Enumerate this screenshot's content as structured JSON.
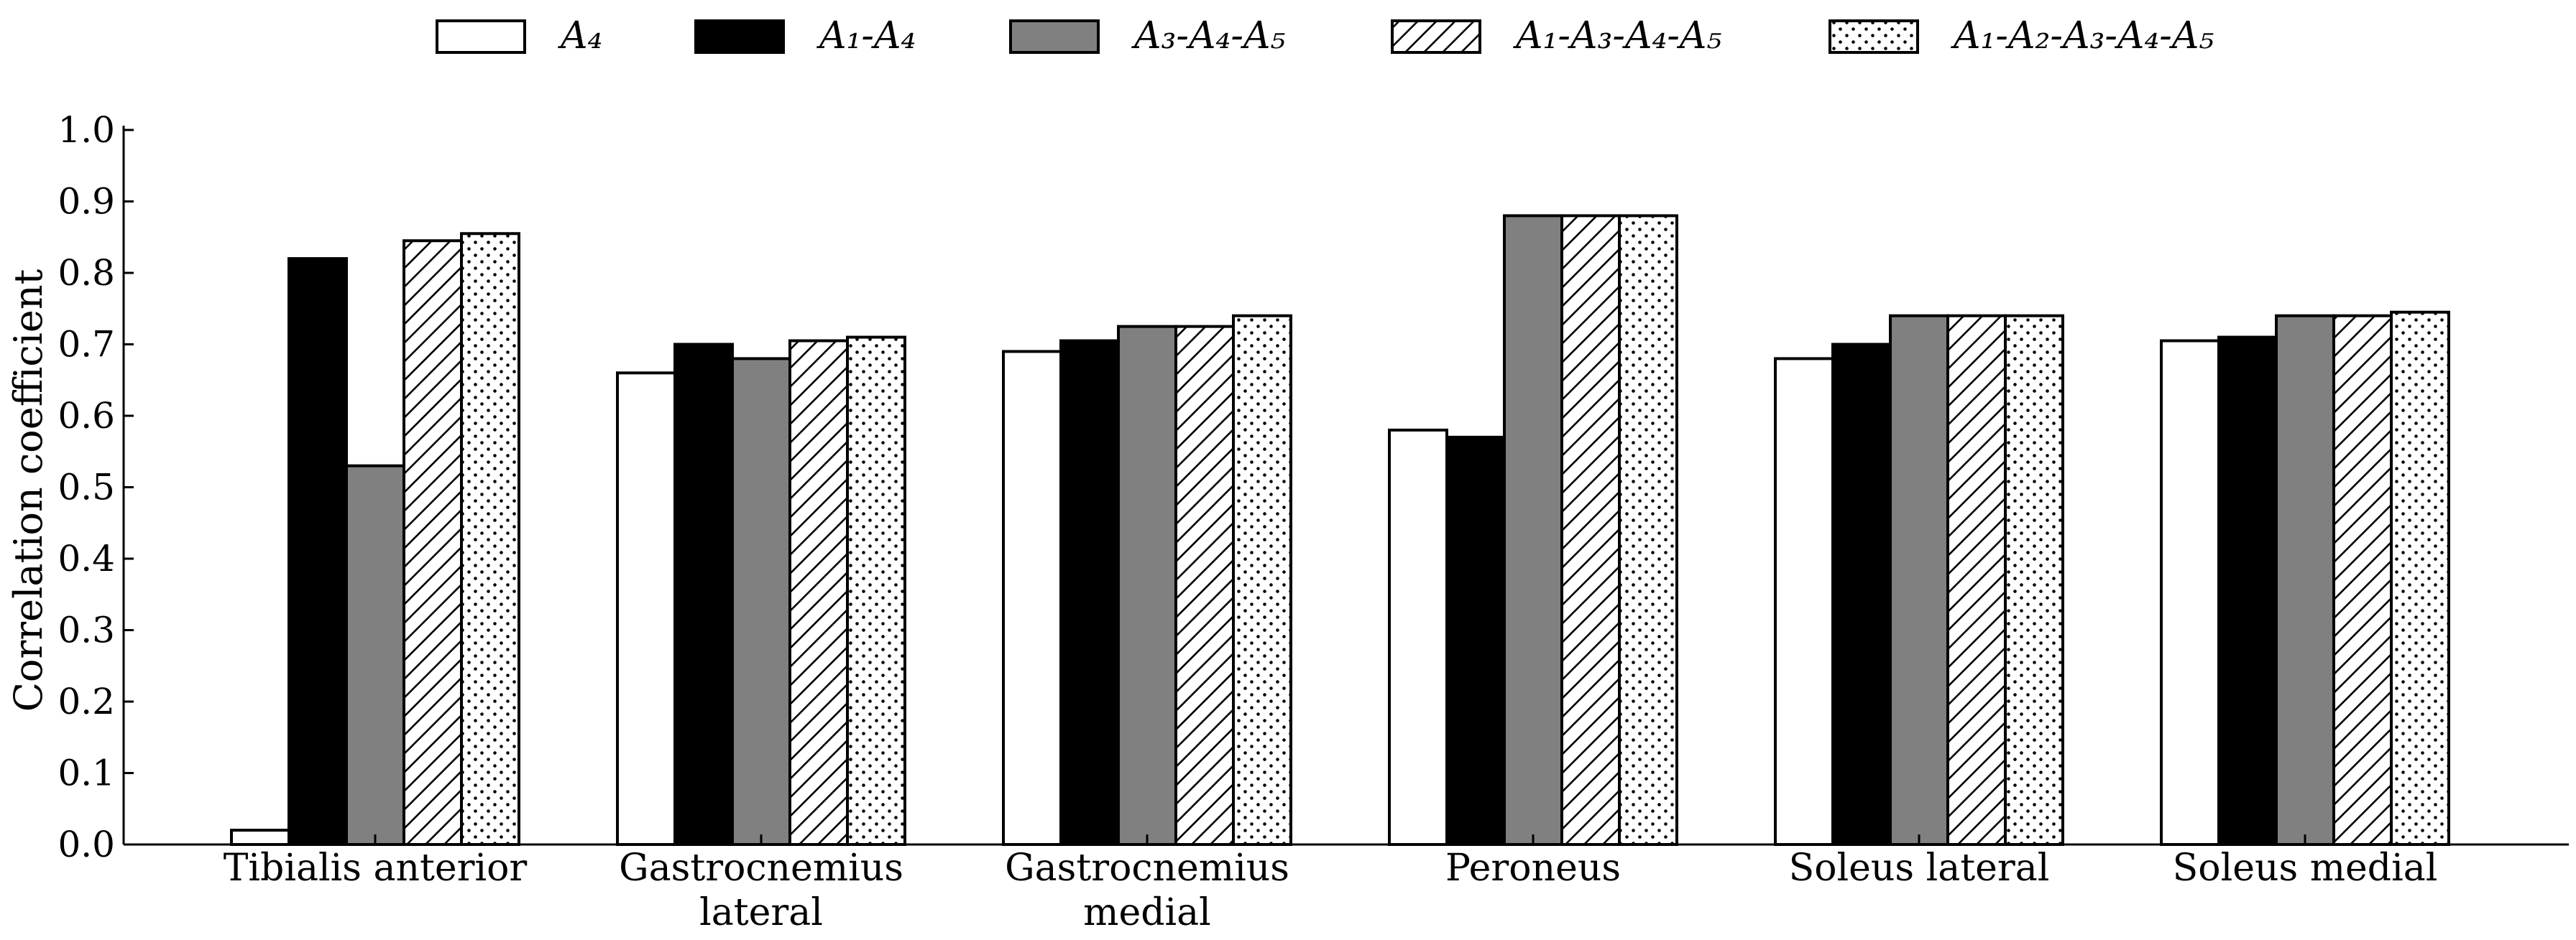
{
  "chart_data": {
    "type": "bar",
    "title": "",
    "xlabel": "",
    "ylabel": "Correlation coefficient",
    "ylim": [
      0,
      1.0
    ],
    "yticks": [
      "0.0",
      "0.1",
      "0.2",
      "0.3",
      "0.4",
      "0.5",
      "0.6",
      "0.7",
      "0.8",
      "0.9",
      "1.0"
    ],
    "grid": false,
    "legend_position": "top",
    "categories": [
      [
        "Tibialis anterior"
      ],
      [
        "Gastrocnemius",
        "lateral"
      ],
      [
        "Gastrocnemius",
        "medial"
      ],
      [
        "Peroneus"
      ],
      [
        "Soleus lateral"
      ],
      [
        "Soleus medial"
      ]
    ],
    "series": [
      {
        "name": "A4",
        "legend_label": "A₄",
        "fill": "white",
        "color": "#ffffff",
        "values": [
          0.02,
          0.66,
          0.69,
          0.58,
          0.68,
          0.705
        ]
      },
      {
        "name": "A1-A4",
        "legend_label": "A₁-A₄",
        "fill": "solid",
        "color": "#000000",
        "values": [
          0.82,
          0.7,
          0.705,
          0.57,
          0.7,
          0.71
        ]
      },
      {
        "name": "A3-A4-A5",
        "legend_label": "A₃-A₄-A₅",
        "fill": "solid",
        "color": "#808080",
        "values": [
          0.53,
          0.68,
          0.725,
          0.88,
          0.74,
          0.74
        ]
      },
      {
        "name": "A1-A3-A4-A5",
        "legend_label": "A₁-A₃-A₄-A₅",
        "fill": "hatch",
        "color": "#ffffff",
        "values": [
          0.845,
          0.705,
          0.725,
          0.88,
          0.74,
          0.74
        ]
      },
      {
        "name": "A1-A2-A3-A4-A5",
        "legend_label": "A₁-A₂-A₃-A₄-A₅",
        "fill": "dots",
        "color": "#ffffff",
        "values": [
          0.855,
          0.71,
          0.74,
          0.88,
          0.74,
          0.745
        ]
      }
    ]
  }
}
